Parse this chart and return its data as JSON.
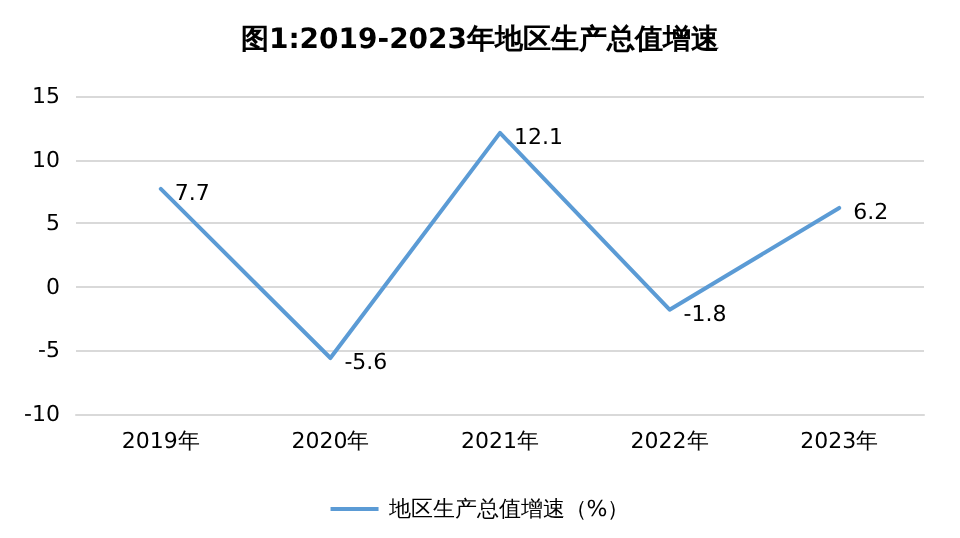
{
  "chart_data": {
    "type": "line",
    "title": "图1:2019-2023年地区生产总值增速",
    "categories": [
      "2019年",
      "2020年",
      "2021年",
      "2022年",
      "2023年"
    ],
    "series": [
      {
        "name": "地区生产总值增速（%）",
        "color": "#5b9bd5",
        "values": [
          7.7,
          -5.6,
          12.1,
          -1.8,
          6.2
        ]
      }
    ],
    "ylim": [
      -10,
      15
    ],
    "yticks": [
      -10,
      -5,
      0,
      5,
      10,
      15
    ],
    "grid": "y",
    "legend": "bottom",
    "marker": "none",
    "line_style": "solid",
    "data_labels": true
  }
}
